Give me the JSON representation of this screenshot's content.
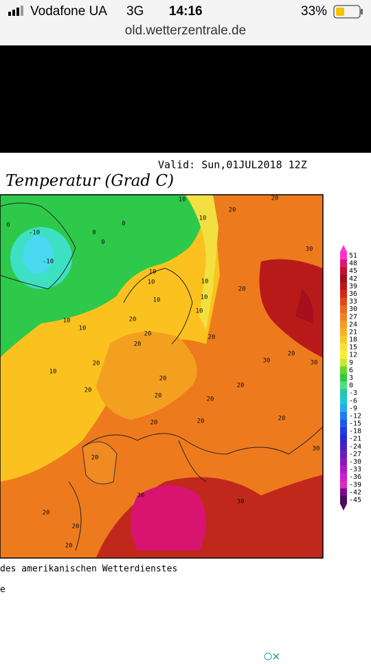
{
  "status_bar": {
    "carrier": "Vodafone UA",
    "network": "3G",
    "time": "14:16",
    "battery": "33%"
  },
  "browser": {
    "url": "old.wetterzentrale.de"
  },
  "map": {
    "valid": "Valid: Sun,01JUL2018 12Z",
    "title": "Temperatur (Grad C)",
    "footer": [
      "des amerikanischen Wetterdienstes",
      "e"
    ],
    "legend": {
      "values": [
        51,
        48,
        45,
        42,
        39,
        36,
        33,
        30,
        27,
        24,
        21,
        18,
        15,
        12,
        9,
        6,
        3,
        0,
        -3,
        -6,
        -9,
        -12,
        -15,
        -18,
        -21,
        -24,
        -27,
        -30,
        -33,
        -36,
        -39,
        -42,
        -45
      ],
      "colors": [
        "#ff33cc",
        "#e0147a",
        "#c8102e",
        "#a50f1e",
        "#b81a1a",
        "#d42a12",
        "#e0481a",
        "#ea6a1c",
        "#f08220",
        "#f59a22",
        "#f8b026",
        "#fbc82a",
        "#fde030",
        "#f4f03a",
        "#c8e830",
        "#66d82a",
        "#2ecc40",
        "#4ee07a",
        "#22c8a8",
        "#18c8d8",
        "#28a8f0",
        "#1e7ef0",
        "#1a5af0",
        "#1e3ce0",
        "#2a28d0",
        "#4a20c8",
        "#6a1cc0",
        "#8a18c0",
        "#b018c8",
        "#d01ccc",
        "#e028c0",
        "#7a0a8a",
        "#500a60"
      ]
    },
    "labels": [
      "-10",
      "-10",
      "0",
      "0",
      "0",
      "0",
      "10",
      "10",
      "10",
      "10",
      "10",
      "10",
      "10",
      "10",
      "10",
      "10",
      "10",
      "20",
      "20",
      "20",
      "30",
      "20",
      "20",
      "20",
      "20",
      "20",
      "20",
      "20",
      "20",
      "20",
      "20",
      "20",
      "20",
      "20",
      "20",
      "30",
      "30",
      "30",
      "20",
      "30",
      "30",
      "20",
      "20",
      "20"
    ]
  }
}
